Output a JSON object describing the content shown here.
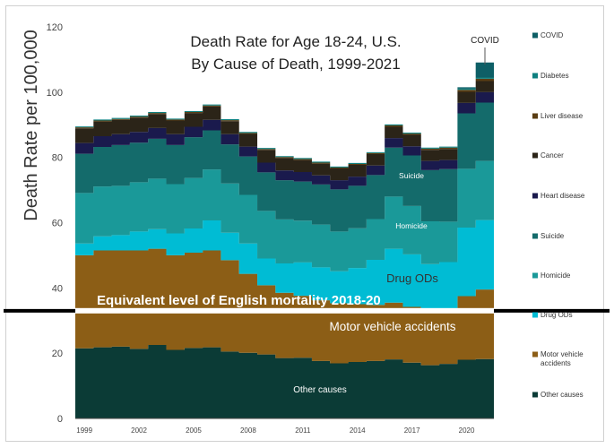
{
  "chart_data": {
    "type": "area",
    "title": "Death Rate for Age 18-24, U.S.",
    "subtitle": "By Cause of Death, 1999-2021",
    "ylabel": "Death Rate per 100,000",
    "xlabel": "",
    "ylim": [
      0,
      120
    ],
    "y_ticks": [
      "0",
      "20",
      "40",
      "60",
      "80",
      "100",
      "120"
    ],
    "x": [
      1999,
      2000,
      2001,
      2002,
      2003,
      2004,
      2005,
      2006,
      2007,
      2008,
      2009,
      2010,
      2011,
      2012,
      2013,
      2014,
      2015,
      2016,
      2017,
      2018,
      2019,
      2020,
      2021
    ],
    "x_tick_labels": [
      "1999",
      "2002",
      "2005",
      "2008",
      "2011",
      "2014",
      "2017",
      "2020"
    ],
    "series": [
      {
        "name": "Other causes",
        "color": "#0b3b36",
        "values": [
          21.5,
          21.8,
          22.0,
          21.3,
          22.5,
          21.0,
          21.6,
          21.8,
          20.5,
          20.1,
          19.6,
          18.5,
          18.6,
          17.6,
          16.9,
          17.3,
          17.6,
          18.1,
          17.1,
          16.3,
          16.7,
          18.0,
          18.2
        ]
      },
      {
        "name": "Motor vehicle accidents",
        "color": "#8c5e16",
        "values": [
          28.5,
          29.7,
          29.5,
          30.2,
          29.5,
          29.0,
          29.2,
          29.7,
          28.0,
          24.2,
          21.2,
          20.0,
          19.0,
          18.6,
          18.4,
          17.7,
          17.2,
          17.4,
          17.1,
          16.4,
          15.6,
          19.5,
          21.3
        ]
      },
      {
        "name": "Drug ODs",
        "color": "#00bcd4",
        "values": [
          3.6,
          4.3,
          4.7,
          5.8,
          6.0,
          6.7,
          7.4,
          9.2,
          8.4,
          9.3,
          8.2,
          9.0,
          10.2,
          10.1,
          9.8,
          11.1,
          13.8,
          16.5,
          16.1,
          14.6,
          15.6,
          21.0,
          21.3
        ]
      },
      {
        "name": "Homicide",
        "color": "#1a9999",
        "values": [
          15.5,
          15.3,
          15.1,
          15.1,
          15.5,
          15.1,
          15.5,
          15.6,
          15.1,
          14.9,
          14.6,
          13.5,
          12.8,
          13.1,
          12.2,
          12.2,
          12.5,
          16.0,
          14.8,
          13.1,
          12.4,
          18.0,
          18.1
        ]
      },
      {
        "name": "Suicide",
        "color": "#146b6b",
        "values": [
          12.0,
          12.1,
          12.5,
          12.1,
          12.2,
          12.0,
          12.5,
          12.0,
          12.0,
          11.8,
          11.8,
          12.0,
          12.0,
          12.3,
          12.9,
          13.0,
          13.5,
          15.0,
          15.5,
          15.7,
          16.1,
          17.0,
          17.9
        ]
      },
      {
        "name": "Heart disease",
        "color": "#1a1a4d",
        "values": [
          3.3,
          3.3,
          3.3,
          3.3,
          3.3,
          3.3,
          3.2,
          3.2,
          3.1,
          3.0,
          3.0,
          3.0,
          2.9,
          2.8,
          2.8,
          2.8,
          2.9,
          2.9,
          2.8,
          2.8,
          2.8,
          3.2,
          3.2
        ]
      },
      {
        "name": "Cancer",
        "color": "#2b2418",
        "values": [
          4.5,
          4.5,
          4.4,
          4.4,
          4.3,
          4.2,
          4.2,
          4.1,
          4.0,
          3.9,
          3.9,
          3.8,
          3.7,
          3.6,
          3.6,
          3.6,
          3.5,
          3.5,
          3.5,
          3.4,
          3.4,
          3.4,
          3.4
        ]
      },
      {
        "name": "Liver disease",
        "color": "#5a3d13",
        "values": [
          0.3,
          0.3,
          0.3,
          0.3,
          0.3,
          0.3,
          0.3,
          0.3,
          0.3,
          0.3,
          0.3,
          0.3,
          0.3,
          0.3,
          0.3,
          0.3,
          0.3,
          0.4,
          0.4,
          0.4,
          0.4,
          0.6,
          0.7
        ]
      },
      {
        "name": "Diabetes",
        "color": "#0e8080",
        "values": [
          0.3,
          0.3,
          0.3,
          0.3,
          0.3,
          0.3,
          0.3,
          0.3,
          0.3,
          0.3,
          0.3,
          0.3,
          0.3,
          0.3,
          0.3,
          0.3,
          0.3,
          0.3,
          0.3,
          0.3,
          0.3,
          0.4,
          0.4
        ]
      },
      {
        "name": "COVID",
        "color": "#0e5f66",
        "values": [
          0,
          0,
          0,
          0,
          0,
          0,
          0,
          0,
          0,
          0,
          0,
          0,
          0,
          0,
          0,
          0,
          0,
          0,
          0,
          0,
          0,
          0.4,
          4.6
        ]
      }
    ],
    "annotations": {
      "suicide": "Suicide",
      "homicide": "Homicide",
      "drug_ods": "Drug ODs",
      "motor_vehicle": "Motor vehicle accidents",
      "other_causes": "Other causes",
      "covid": "COVID",
      "equivalent_line_label": "Equivalent level of English mortality 2018-20",
      "equivalent_line_value": 33
    },
    "legend": {
      "placement": "right",
      "entries": [
        "COVID",
        "Diabetes",
        "Liver disease",
        "Cancer",
        "Heart disease",
        "Suicide",
        "Homicide",
        "Drug ODs",
        "Motor vehicle accidents",
        "Other causes"
      ]
    }
  }
}
